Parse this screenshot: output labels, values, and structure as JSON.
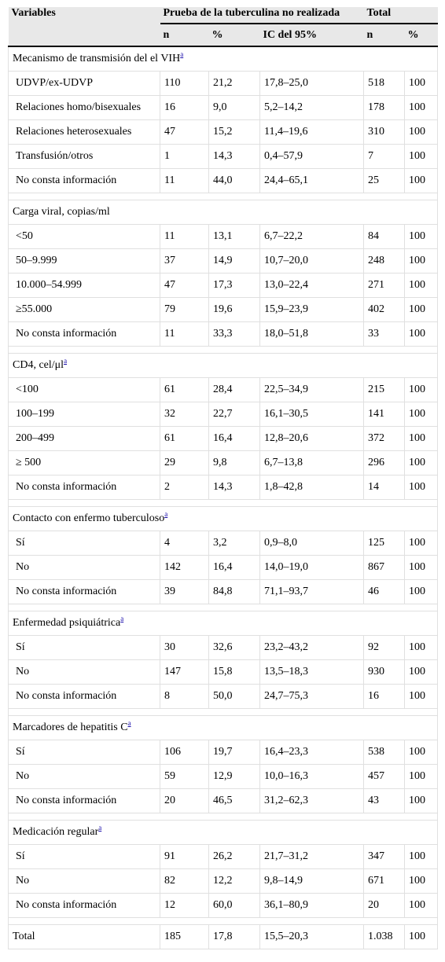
{
  "header": {
    "variables": "Variables",
    "prueba": "Prueba de la tuberculina no realizada",
    "total": "Total",
    "sub": [
      "n",
      "%",
      "IC del 95%",
      "n",
      "%"
    ]
  },
  "groups": [
    {
      "title": "Mecanismo de transmisión del el VIH",
      "note": "a",
      "rows": [
        {
          "label": "UDVP/ex-UDVP",
          "n": "110",
          "pct": "21,2",
          "ic": "17,8–25,0",
          "tn": "518",
          "tpct": "100"
        },
        {
          "label": "Relaciones homo/bisexuales",
          "n": "16",
          "pct": "9,0",
          "ic": "5,2–14,2",
          "tn": "178",
          "tpct": "100"
        },
        {
          "label": "Relaciones heterosexuales",
          "n": "47",
          "pct": "15,2",
          "ic": "11,4–19,6",
          "tn": "310",
          "tpct": "100"
        },
        {
          "label": "Transfusión/otros",
          "n": "1",
          "pct": "14,3",
          "ic": "0,4–57,9",
          "tn": "7",
          "tpct": "100"
        },
        {
          "label": "No consta información",
          "n": "11",
          "pct": "44,0",
          "ic": "24,4–65,1",
          "tn": "25",
          "tpct": "100"
        }
      ]
    },
    {
      "title": "Carga viral, copias/ml",
      "note": "",
      "rows": [
        {
          "label": "<50",
          "n": "11",
          "pct": "13,1",
          "ic": "6,7–22,2",
          "tn": "84",
          "tpct": "100"
        },
        {
          "label": "50–9.999",
          "n": "37",
          "pct": "14,9",
          "ic": "10,7–20,0",
          "tn": "248",
          "tpct": "100"
        },
        {
          "label": "10.000–54.999",
          "n": "47",
          "pct": "17,3",
          "ic": "13,0–22,4",
          "tn": "271",
          "tpct": "100"
        },
        {
          "label": "≥55.000",
          "n": "79",
          "pct": "19,6",
          "ic": "15,9–23,9",
          "tn": "402",
          "tpct": "100"
        },
        {
          "label": "No consta información",
          "n": "11",
          "pct": "33,3",
          "ic": "18,0–51,8",
          "tn": "33",
          "tpct": "100"
        }
      ]
    },
    {
      "title": "CD4, cel/μl",
      "note": "a",
      "rows": [
        {
          "label": "<100",
          "n": "61",
          "pct": "28,4",
          "ic": "22,5–34,9",
          "tn": "215",
          "tpct": "100"
        },
        {
          "label": "100–199",
          "n": "32",
          "pct": "22,7",
          "ic": "16,1–30,5",
          "tn": "141",
          "tpct": "100"
        },
        {
          "label": "200–499",
          "n": "61",
          "pct": "16,4",
          "ic": "12,8–20,6",
          "tn": "372",
          "tpct": "100"
        },
        {
          "label": "≥ 500",
          "n": "29",
          "pct": "9,8",
          "ic": "6,7–13,8",
          "tn": "296",
          "tpct": "100"
        },
        {
          "label": "No consta información",
          "n": "2",
          "pct": "14,3",
          "ic": "1,8–42,8",
          "tn": "14",
          "tpct": "100"
        }
      ]
    },
    {
      "title": "Contacto con enfermo tuberculoso",
      "note": "a",
      "rows": [
        {
          "label": "Sí",
          "n": "4",
          "pct": "3,2",
          "ic": "0,9–8,0",
          "tn": "125",
          "tpct": "100"
        },
        {
          "label": "No",
          "n": "142",
          "pct": "16,4",
          "ic": "14,0–19,0",
          "tn": "867",
          "tpct": "100"
        },
        {
          "label": "No consta información",
          "n": "39",
          "pct": "84,8",
          "ic": "71,1–93,7",
          "tn": "46",
          "tpct": "100"
        }
      ]
    },
    {
      "title": "Enfermedad psiquiátrica",
      "note": "a",
      "rows": [
        {
          "label": "Sí",
          "n": "30",
          "pct": "32,6",
          "ic": "23,2–43,2",
          "tn": "92",
          "tpct": "100"
        },
        {
          "label": "No",
          "n": "147",
          "pct": "15,8",
          "ic": "13,5–18,3",
          "tn": "930",
          "tpct": "100"
        },
        {
          "label": "No consta información",
          "n": "8",
          "pct": "50,0",
          "ic": "24,7–75,3",
          "tn": "16",
          "tpct": "100"
        }
      ]
    },
    {
      "title": "Marcadores de hepatitis C",
      "note": "a",
      "rows": [
        {
          "label": "Sí",
          "n": "106",
          "pct": "19,7",
          "ic": "16,4–23,3",
          "tn": "538",
          "tpct": "100"
        },
        {
          "label": "No",
          "n": "59",
          "pct": "12,9",
          "ic": "10,0–16,3",
          "tn": "457",
          "tpct": "100"
        },
        {
          "label": "No consta información",
          "n": "20",
          "pct": "46,5",
          "ic": "31,2–62,3",
          "tn": "43",
          "tpct": "100"
        }
      ]
    },
    {
      "title": "Medicación regular",
      "note": "a",
      "rows": [
        {
          "label": "Sí",
          "n": "91",
          "pct": "26,2",
          "ic": "21,7–31,2",
          "tn": "347",
          "tpct": "100"
        },
        {
          "label": "No",
          "n": "82",
          "pct": "12,2",
          "ic": "9,8–14,9",
          "tn": "671",
          "tpct": "100"
        },
        {
          "label": "No consta información",
          "n": "12",
          "pct": "60,0",
          "ic": "36,1–80,9",
          "tn": "20",
          "tpct": "100"
        }
      ]
    }
  ],
  "total_row": {
    "label": "Total",
    "n": "185",
    "pct": "17,8",
    "ic": "15,5–20,3",
    "tn": "1.038",
    "tpct": "100"
  }
}
